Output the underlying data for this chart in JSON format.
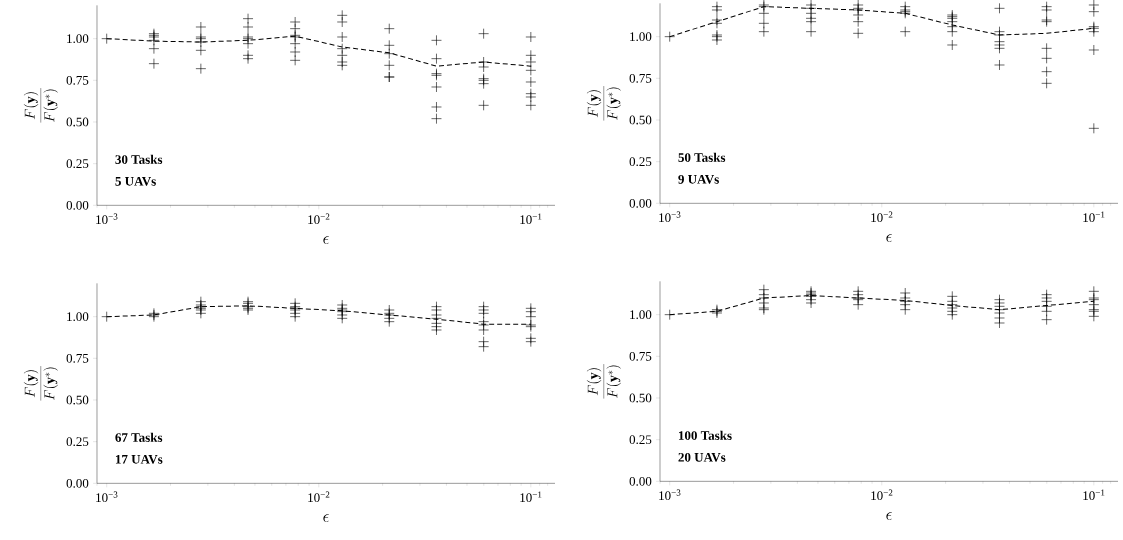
{
  "chart_data": [
    {
      "type": "scatter",
      "xlabel": "\\epsilon",
      "ylabel": "\\frac{F(\\mathbf{y})}{F(\\mathbf{y}^*)}",
      "annotations": [
        "30 Tasks",
        "5 UAVs"
      ],
      "log": "x",
      "xlim": [
        0.0009,
        0.13
      ],
      "ylim": [
        0,
        1.2
      ],
      "xticks": [
        {
          "value": 0.0009,
          "label": null
        },
        {
          "value": 0.001,
          "label": "10$^{−3}$"
        },
        {
          "value": 0.002,
          "label": null
        },
        {
          "value": 0.003,
          "label": null
        },
        {
          "value": 0.004,
          "label": null
        },
        {
          "value": 0.005,
          "label": null
        },
        {
          "value": 0.006,
          "label": null
        },
        {
          "value": 0.007,
          "label": null
        },
        {
          "value": 0.008,
          "label": null
        },
        {
          "value": 0.009,
          "label": null
        },
        {
          "value": 0.01,
          "label": "10$^{−2}$"
        },
        {
          "value": 0.02,
          "label": null
        },
        {
          "value": 0.03,
          "label": null
        },
        {
          "value": 0.04,
          "label": null
        },
        {
          "value": 0.05,
          "label": null
        },
        {
          "value": 0.06,
          "label": null
        },
        {
          "value": 0.07,
          "label": null
        },
        {
          "value": 0.08,
          "label": null
        },
        {
          "value": 0.09,
          "label": null
        },
        {
          "value": 0.1,
          "label": "10$^{−1}$"
        },
        {
          "value": 0.11,
          "label": null
        },
        {
          "value": 0.12,
          "label": null
        }
      ],
      "yticks": [
        {
          "value": 0,
          "label": "0.00"
        },
        {
          "value": 0.25,
          "label": "0.25"
        },
        {
          "value": 0.5,
          "label": "0.50"
        },
        {
          "value": 0.75,
          "label": "0.75"
        },
        {
          "value": 1,
          "label": "1.00"
        }
      ],
      "series": [
        {
          "type": "scatter",
          "marker": "cross",
          "color": "#000000",
          "x": [
            0.001,
            0.00167,
            0.00167,
            0.00167,
            0.00167,
            0.00167,
            0.00167,
            0.00278,
            0.00278,
            0.00278,
            0.00278,
            0.00278,
            0.00278,
            0.00464,
            0.00464,
            0.00464,
            0.00464,
            0.00464,
            0.00464,
            0.00464,
            0.00774,
            0.00774,
            0.00774,
            0.00774,
            0.00774,
            0.00774,
            0.00774,
            0.0129,
            0.0129,
            0.0129,
            0.0129,
            0.0129,
            0.0129,
            0.0129,
            0.0215,
            0.0215,
            0.0215,
            0.0215,
            0.0215,
            0.0215,
            0.0359,
            0.0359,
            0.0359,
            0.0359,
            0.0359,
            0.0359,
            0.0359,
            0.0599,
            0.0599,
            0.0599,
            0.0599,
            0.0599,
            0.0599,
            0.0599,
            0.1,
            0.1,
            0.1,
            0.1,
            0.1,
            0.1,
            0.1,
            0.1
          ],
          "values": [
            1.0,
            1.03,
            1.02,
            1.01,
            0.99,
            0.94,
            0.85,
            1.07,
            1.01,
            1.0,
            0.98,
            0.93,
            0.82,
            1.12,
            1.07,
            1.01,
            1.0,
            0.97,
            0.9,
            0.88,
            1.1,
            1.06,
            1.02,
            1.01,
            0.97,
            0.92,
            0.87,
            1.14,
            1.1,
            1.01,
            0.94,
            0.9,
            0.86,
            0.84,
            1.06,
            0.96,
            0.91,
            0.84,
            0.77,
            0.77,
            0.99,
            0.88,
            0.79,
            0.78,
            0.71,
            0.59,
            0.52,
            1.03,
            0.86,
            0.83,
            0.76,
            0.75,
            0.73,
            0.6,
            1.01,
            0.9,
            0.86,
            0.81,
            0.74,
            0.67,
            0.65,
            0.6
          ]
        },
        {
          "type": "line",
          "marker": "none",
          "line_style": "dashed",
          "color": "#000000",
          "x": [
            0.001,
            0.00167,
            0.00278,
            0.00464,
            0.00774,
            0.0129,
            0.0215,
            0.0359,
            0.0599,
            0.1
          ],
          "values": [
            1.0,
            0.985,
            0.98,
            0.99,
            1.015,
            0.95,
            0.915,
            0.835,
            0.86,
            0.835
          ]
        }
      ]
    },
    {
      "type": "scatter",
      "xlabel": "\\epsilon",
      "ylabel": "\\frac{F(\\mathbf{y})}{F(\\mathbf{y}^*)}",
      "annotations": [
        "50 Tasks",
        "9 UAVs"
      ],
      "log": "x",
      "xlim": [
        0.0009,
        0.13
      ],
      "ylim": [
        0,
        1.2
      ],
      "xticks": [
        {
          "value": 0.0009,
          "label": null
        },
        {
          "value": 0.001,
          "label": "10$^{−3}$"
        },
        {
          "value": 0.002,
          "label": null
        },
        {
          "value": 0.003,
          "label": null
        },
        {
          "value": 0.004,
          "label": null
        },
        {
          "value": 0.005,
          "label": null
        },
        {
          "value": 0.006,
          "label": null
        },
        {
          "value": 0.007,
          "label": null
        },
        {
          "value": 0.008,
          "label": null
        },
        {
          "value": 0.009,
          "label": null
        },
        {
          "value": 0.01,
          "label": "10$^{−2}$"
        },
        {
          "value": 0.02,
          "label": null
        },
        {
          "value": 0.03,
          "label": null
        },
        {
          "value": 0.04,
          "label": null
        },
        {
          "value": 0.05,
          "label": null
        },
        {
          "value": 0.06,
          "label": null
        },
        {
          "value": 0.07,
          "label": null
        },
        {
          "value": 0.08,
          "label": null
        },
        {
          "value": 0.09,
          "label": null
        },
        {
          "value": 0.1,
          "label": "10$^{−1}$"
        },
        {
          "value": 0.11,
          "label": null
        },
        {
          "value": 0.12,
          "label": null
        }
      ],
      "yticks": [
        {
          "value": 0,
          "label": "0.00"
        },
        {
          "value": 0.25,
          "label": "0.25"
        },
        {
          "value": 0.5,
          "label": "0.50"
        },
        {
          "value": 0.75,
          "label": "0.75"
        },
        {
          "value": 1,
          "label": "1.00"
        }
      ],
      "series": [
        {
          "type": "scatter",
          "marker": "cross",
          "color": "#000000",
          "x": [
            0.001,
            0.00167,
            0.00167,
            0.00167,
            0.00167,
            0.00167,
            0.00167,
            0.00167,
            0.00278,
            0.00278,
            0.00278,
            0.00278,
            0.00278,
            0.00464,
            0.00464,
            0.00464,
            0.00464,
            0.00464,
            0.00464,
            0.00774,
            0.00774,
            0.00774,
            0.00774,
            0.00774,
            0.00774,
            0.0129,
            0.0129,
            0.0129,
            0.0129,
            0.0129,
            0.0215,
            0.0215,
            0.0215,
            0.0215,
            0.0215,
            0.0215,
            0.0215,
            0.0359,
            0.0359,
            0.0359,
            0.0359,
            0.0359,
            0.0359,
            0.0359,
            0.0599,
            0.0599,
            0.0599,
            0.0599,
            0.0599,
            0.0599,
            0.0599,
            0.0599,
            0.1,
            0.1,
            0.1,
            0.1,
            0.1,
            0.1,
            0.1
          ],
          "values": [
            1.0,
            1.18,
            1.16,
            1.1,
            1.08,
            1.01,
            1.0,
            0.98,
            1.19,
            1.18,
            1.14,
            1.08,
            1.03,
            1.19,
            1.17,
            1.14,
            1.11,
            1.09,
            1.03,
            1.19,
            1.17,
            1.16,
            1.13,
            1.09,
            1.02,
            1.18,
            1.16,
            1.15,
            1.14,
            1.03,
            1.13,
            1.12,
            1.11,
            1.09,
            1.06,
            1.03,
            0.95,
            1.17,
            1.03,
            1.01,
            0.97,
            0.95,
            0.93,
            0.83,
            1.18,
            1.16,
            1.1,
            1.09,
            0.93,
            0.87,
            0.79,
            0.72,
            1.19,
            1.15,
            1.06,
            1.05,
            1.03,
            0.92,
            0.45
          ]
        },
        {
          "type": "line",
          "marker": "none",
          "line_style": "dashed",
          "color": "#000000",
          "x": [
            0.001,
            0.00167,
            0.00278,
            0.00464,
            0.00774,
            0.0129,
            0.0215,
            0.0359,
            0.0599,
            0.1
          ],
          "values": [
            1.0,
            1.09,
            1.18,
            1.17,
            1.16,
            1.14,
            1.07,
            1.01,
            1.02,
            1.05
          ]
        }
      ]
    },
    {
      "type": "scatter",
      "xlabel": "\\epsilon",
      "ylabel": "\\frac{F(\\mathbf{y})}{F(\\mathbf{y}^*)}",
      "annotations": [
        "67 Tasks",
        "17 UAVs"
      ],
      "log": "x",
      "xlim": [
        0.0009,
        0.13
      ],
      "ylim": [
        0,
        1.2
      ],
      "xticks": [
        {
          "value": 0.0009,
          "label": null
        },
        {
          "value": 0.001,
          "label": "10$^{−3}$"
        },
        {
          "value": 0.002,
          "label": null
        },
        {
          "value": 0.003,
          "label": null
        },
        {
          "value": 0.004,
          "label": null
        },
        {
          "value": 0.005,
          "label": null
        },
        {
          "value": 0.006,
          "label": null
        },
        {
          "value": 0.007,
          "label": null
        },
        {
          "value": 0.008,
          "label": null
        },
        {
          "value": 0.009,
          "label": null
        },
        {
          "value": 0.01,
          "label": "10$^{−2}$"
        },
        {
          "value": 0.02,
          "label": null
        },
        {
          "value": 0.03,
          "label": null
        },
        {
          "value": 0.04,
          "label": null
        },
        {
          "value": 0.05,
          "label": null
        },
        {
          "value": 0.06,
          "label": null
        },
        {
          "value": 0.07,
          "label": null
        },
        {
          "value": 0.08,
          "label": null
        },
        {
          "value": 0.09,
          "label": null
        },
        {
          "value": 0.1,
          "label": "10$^{−1}$"
        },
        {
          "value": 0.11,
          "label": null
        },
        {
          "value": 0.12,
          "label": null
        }
      ],
      "yticks": [
        {
          "value": 0,
          "label": "0.00"
        },
        {
          "value": 0.25,
          "label": "0.25"
        },
        {
          "value": 0.5,
          "label": "0.50"
        },
        {
          "value": 0.75,
          "label": "0.75"
        },
        {
          "value": 1,
          "label": "1.00"
        }
      ],
      "series": [
        {
          "type": "scatter",
          "marker": "cross",
          "color": "#000000",
          "x": [
            0.001,
            0.00167,
            0.00167,
            0.00167,
            0.00278,
            0.00278,
            0.00278,
            0.00278,
            0.00278,
            0.00278,
            0.00464,
            0.00464,
            0.00464,
            0.00464,
            0.00464,
            0.00774,
            0.00774,
            0.00774,
            0.00774,
            0.00774,
            0.00774,
            0.0129,
            0.0129,
            0.0129,
            0.0129,
            0.0129,
            0.0129,
            0.0215,
            0.0215,
            0.0215,
            0.0215,
            0.0215,
            0.0359,
            0.0359,
            0.0359,
            0.0359,
            0.0359,
            0.0359,
            0.0359,
            0.0599,
            0.0599,
            0.0599,
            0.0599,
            0.0599,
            0.0599,
            0.0599,
            0.0599,
            0.1,
            0.1,
            0.1,
            0.1,
            0.1,
            0.1,
            0.1
          ],
          "values": [
            1.0,
            1.02,
            1.01,
            1.0,
            1.09,
            1.07,
            1.06,
            1.05,
            1.04,
            1.02,
            1.09,
            1.08,
            1.06,
            1.05,
            1.04,
            1.08,
            1.06,
            1.05,
            1.04,
            1.02,
            1.0,
            1.07,
            1.05,
            1.04,
            1.03,
            1.01,
            0.99,
            1.04,
            1.02,
            1.01,
            0.99,
            0.97,
            1.06,
            1.04,
            1.01,
            0.99,
            0.96,
            0.94,
            0.92,
            1.06,
            1.04,
            1.02,
            0.97,
            0.95,
            0.92,
            0.85,
            0.82,
            1.05,
            1.03,
            1.0,
            0.95,
            0.94,
            0.87,
            0.85
          ]
        },
        {
          "type": "line",
          "marker": "none",
          "line_style": "dashed",
          "color": "#000000",
          "x": [
            0.001,
            0.00167,
            0.00278,
            0.00464,
            0.00774,
            0.0129,
            0.0215,
            0.0359,
            0.0599,
            0.1
          ],
          "values": [
            1.0,
            1.01,
            1.06,
            1.065,
            1.05,
            1.035,
            1.01,
            0.985,
            0.955,
            0.955
          ]
        }
      ]
    },
    {
      "type": "scatter",
      "xlabel": "\\epsilon",
      "ylabel": "\\frac{F(\\mathbf{y})}{F(\\mathbf{y}^*)}",
      "annotations": [
        "100 Tasks",
        "20 UAVs"
      ],
      "log": "x",
      "xlim": [
        0.0009,
        0.13
      ],
      "ylim": [
        0,
        1.2
      ],
      "xticks": [
        {
          "value": 0.0009,
          "label": null
        },
        {
          "value": 0.001,
          "label": "10$^{−3}$"
        },
        {
          "value": 0.002,
          "label": null
        },
        {
          "value": 0.003,
          "label": null
        },
        {
          "value": 0.004,
          "label": null
        },
        {
          "value": 0.005,
          "label": null
        },
        {
          "value": 0.006,
          "label": null
        },
        {
          "value": 0.007,
          "label": null
        },
        {
          "value": 0.008,
          "label": null
        },
        {
          "value": 0.009,
          "label": null
        },
        {
          "value": 0.01,
          "label": "10$^{−2}$"
        },
        {
          "value": 0.02,
          "label": null
        },
        {
          "value": 0.03,
          "label": null
        },
        {
          "value": 0.04,
          "label": null
        },
        {
          "value": 0.05,
          "label": null
        },
        {
          "value": 0.06,
          "label": null
        },
        {
          "value": 0.07,
          "label": null
        },
        {
          "value": 0.08,
          "label": null
        },
        {
          "value": 0.09,
          "label": null
        },
        {
          "value": 0.1,
          "label": "10$^{−1}$"
        },
        {
          "value": 0.11,
          "label": null
        },
        {
          "value": 0.12,
          "label": null
        }
      ],
      "yticks": [
        {
          "value": 0,
          "label": "0.00"
        },
        {
          "value": 0.25,
          "label": "0.25"
        },
        {
          "value": 0.5,
          "label": "0.50"
        },
        {
          "value": 0.75,
          "label": "0.75"
        },
        {
          "value": 1,
          "label": "1.00"
        }
      ],
      "series": [
        {
          "type": "scatter",
          "marker": "cross",
          "color": "#000000",
          "x": [
            0.001,
            0.00167,
            0.00167,
            0.00167,
            0.00278,
            0.00278,
            0.00278,
            0.00278,
            0.00278,
            0.00278,
            0.00464,
            0.00464,
            0.00464,
            0.00464,
            0.00464,
            0.00464,
            0.00774,
            0.00774,
            0.00774,
            0.00774,
            0.00774,
            0.0129,
            0.0129,
            0.0129,
            0.0129,
            0.0129,
            0.0215,
            0.0215,
            0.0215,
            0.0215,
            0.0215,
            0.0215,
            0.0359,
            0.0359,
            0.0359,
            0.0359,
            0.0359,
            0.0359,
            0.0359,
            0.0599,
            0.0599,
            0.0599,
            0.0599,
            0.0599,
            0.0599,
            0.1,
            0.1,
            0.1,
            0.1,
            0.1,
            0.1,
            0.1
          ],
          "values": [
            1.0,
            1.03,
            1.02,
            1.01,
            1.15,
            1.12,
            1.1,
            1.07,
            1.04,
            1.03,
            1.14,
            1.13,
            1.12,
            1.11,
            1.09,
            1.07,
            1.14,
            1.12,
            1.1,
            1.09,
            1.06,
            1.13,
            1.1,
            1.08,
            1.06,
            1.03,
            1.11,
            1.08,
            1.06,
            1.04,
            1.02,
            1.0,
            1.09,
            1.07,
            1.05,
            1.03,
            1.01,
            0.98,
            0.95,
            1.12,
            1.1,
            1.08,
            1.05,
            1.02,
            0.97,
            1.14,
            1.1,
            1.09,
            1.06,
            1.03,
            1.02,
            0.99
          ]
        },
        {
          "type": "line",
          "marker": "none",
          "line_style": "dashed",
          "color": "#000000",
          "x": [
            0.001,
            0.00167,
            0.00278,
            0.00464,
            0.00774,
            0.0129,
            0.0215,
            0.0359,
            0.0599,
            0.1
          ],
          "values": [
            1.0,
            1.02,
            1.1,
            1.115,
            1.1,
            1.085,
            1.055,
            1.03,
            1.055,
            1.08
          ]
        }
      ]
    }
  ]
}
